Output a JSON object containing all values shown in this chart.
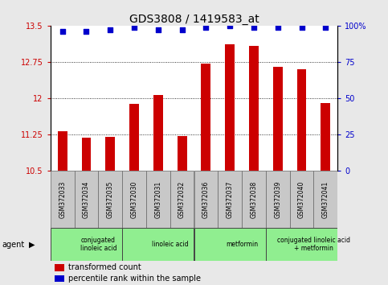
{
  "title": "GDS3808 / 1419583_at",
  "samples": [
    "GSM372033",
    "GSM372034",
    "GSM372035",
    "GSM372030",
    "GSM372031",
    "GSM372032",
    "GSM372036",
    "GSM372037",
    "GSM372038",
    "GSM372039",
    "GSM372040",
    "GSM372041"
  ],
  "bar_values": [
    11.32,
    11.18,
    11.2,
    11.88,
    12.07,
    11.22,
    12.72,
    13.12,
    13.08,
    12.65,
    12.6,
    11.9
  ],
  "dot_pct": [
    96,
    96,
    97,
    99,
    97,
    97,
    99,
    100,
    99,
    99,
    99,
    99
  ],
  "bar_color": "#cc0000",
  "dot_color": "#0000cc",
  "ylim_left": [
    10.5,
    13.5
  ],
  "ylim_right": [
    0,
    100
  ],
  "yticks_left": [
    10.5,
    11.25,
    12.0,
    12.75,
    13.5
  ],
  "yticks_right": [
    0,
    25,
    50,
    75,
    100
  ],
  "ytick_labels_left": [
    "10.5",
    "11.25",
    "12",
    "12.75",
    "13.5"
  ],
  "ytick_labels_right": [
    "0",
    "25",
    "50",
    "75",
    "100%"
  ],
  "grid_values": [
    11.25,
    12.0,
    12.75
  ],
  "agents": [
    {
      "label": "conjugated\nlinoleic acid",
      "start": 0,
      "end": 3
    },
    {
      "label": "linoleic acid",
      "start": 3,
      "end": 6
    },
    {
      "label": "metformin",
      "start": 6,
      "end": 9
    },
    {
      "label": "conjugated linoleic acid\n+ metformin",
      "start": 9,
      "end": 12
    }
  ],
  "agent_label": "agent",
  "legend_items": [
    {
      "color": "#cc0000",
      "label": "transformed count"
    },
    {
      "color": "#0000cc",
      "label": "percentile rank within the sample"
    }
  ],
  "bg_color": "#e8e8e8",
  "plot_bg": "#ffffff",
  "sample_cell_color": "#c8c8c8",
  "agent_box_color": "#90ee90",
  "title_fontsize": 10,
  "tick_color_left": "#cc0000",
  "tick_color_right": "#0000cc",
  "bar_width": 0.4
}
